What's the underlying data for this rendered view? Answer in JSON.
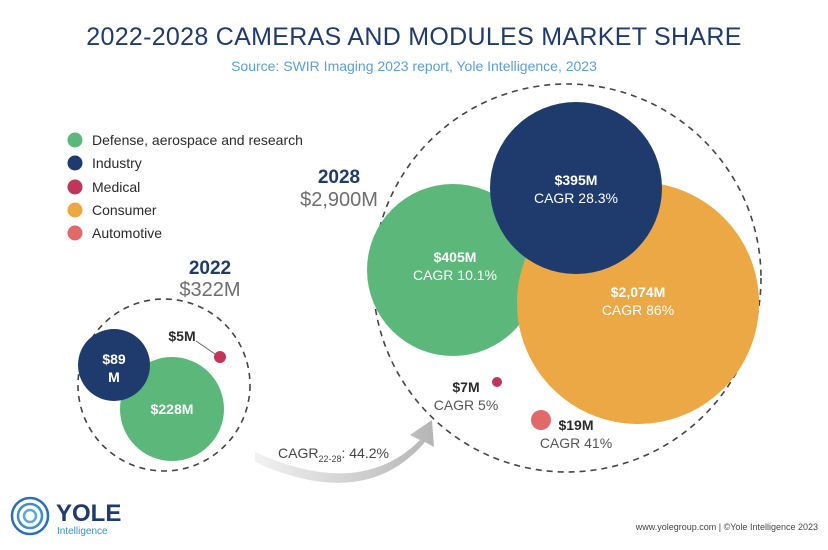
{
  "header": {
    "title": "2022-2028 CAMERAS AND MODULES MARKET SHARE",
    "subtitle": "Source: SWIR Imaging 2023 report, Yole Intelligence, 2023"
  },
  "legend": [
    {
      "label": "Defense, aerospace and research",
      "color": "#5cb87a"
    },
    {
      "label": "Industry",
      "color": "#1f3b6e"
    },
    {
      "label": "Medical",
      "color": "#c0355a"
    },
    {
      "label": "Consumer",
      "color": "#eca844"
    },
    {
      "label": "Automotive",
      "color": "#e06a6a"
    }
  ],
  "chart_data": [
    {
      "type": "bubble",
      "year": "2022",
      "total_label": "$322M",
      "total_value": 322,
      "segments": [
        {
          "name": "Industry",
          "label": "$89\nM",
          "value": 89,
          "color": "#1f3b6e"
        },
        {
          "name": "Defense, aerospace and research",
          "label": "$228M",
          "value": 228,
          "color": "#5cb87a"
        },
        {
          "name": "Medical",
          "label": "$5M",
          "value": 5,
          "color": "#c0355a"
        }
      ]
    },
    {
      "type": "bubble",
      "year": "2028",
      "total_label": "$2,900M",
      "total_value": 2900,
      "segments": [
        {
          "name": "Defense, aerospace and research",
          "label": "$405M",
          "cagr": "CAGR 10.1%",
          "value": 405,
          "color": "#5cb87a"
        },
        {
          "name": "Industry",
          "label": "$395M",
          "cagr": "CAGR 28.3%",
          "value": 395,
          "color": "#1f3b6e"
        },
        {
          "name": "Consumer",
          "label": "$2,074M",
          "cagr": "CAGR 86%",
          "value": 2074,
          "color": "#eca844"
        },
        {
          "name": "Medical",
          "label": "$7M",
          "cagr": "CAGR 5%",
          "value": 7,
          "color": "#c0355a"
        },
        {
          "name": "Automotive",
          "label": "$19M",
          "cagr": "CAGR 41%",
          "value": 19,
          "color": "#e06a6a"
        }
      ]
    }
  ],
  "growth": {
    "prefix": "CAGR",
    "subscript": "22-28",
    "suffix": ": 44.2%"
  },
  "logo": {
    "name": "YOLE",
    "sub": "Intelligence"
  },
  "footer": "www.yolegroup.com | ©Yole Intelligence 2023"
}
